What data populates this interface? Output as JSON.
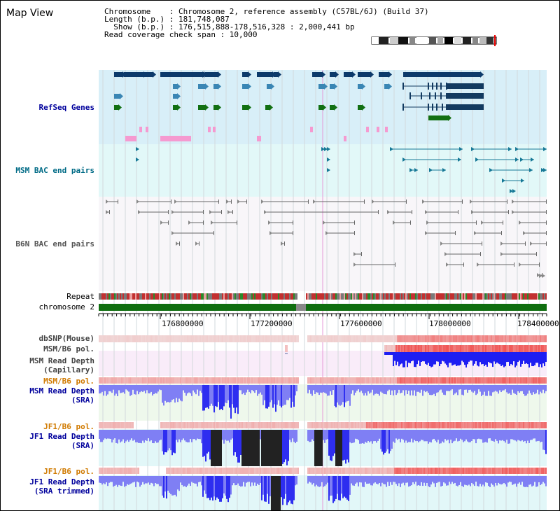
{
  "view_title": "Map View",
  "info": {
    "line1": "Chromosome    : Chromosome 2, reference assembly (C57BL/6J) (Build 37)",
    "line2": "Length (b.p.) : 181,748,087",
    "line3": "  Show (b.p.) : 176,515,888-178,516,328 : 2,000,441 bp",
    "line4": "Read coverage check span : 10,000"
  },
  "tracks": {
    "refseq": "RefSeq Genes",
    "msm_bac": "MSM BAC end pairs",
    "b6n_bac": "B6N BAC end pairs",
    "repeat": "Repeat",
    "chromosome": "chromosome 2",
    "dbsnp": "dbSNP(Mouse)",
    "msm_pol1": "MSM/B6 pol.",
    "msm_depth_cap": "MSM Read Depth",
    "msm_depth_cap_sub": "(Capillary)",
    "msm_pol2": "MSM/B6 pol.",
    "msm_depth_sra": "MSM Read Depth",
    "msm_depth_sra_sub": "(SRA)",
    "jf1_pol1": "JF1/B6 pol.",
    "jf1_depth": "JF1 Read Depth",
    "jf1_depth_sub": "(SRA)",
    "jf1_pol2": "JF1/B6 pol.",
    "jf1_depth_trim": "JF1 Read Depth",
    "jf1_depth_trim_sub": "(SRA trimmed)"
  },
  "ruler": {
    "ticks": [
      "176800000",
      "177200000",
      "177600000",
      "178000000",
      "178400000"
    ]
  },
  "colors": {
    "refseq_bg": "#d8eff8",
    "msm_bac_bg": "#e2f8f8",
    "b6n_bg": "#f8f6f9",
    "chromosome": "#0f6e0f",
    "depth_blue": "#2e2ef0",
    "depth_light": "#7f7ff4",
    "polymorphism_red": "#e83838",
    "track_label_blue": "#00009c",
    "track_label_orange": "#d07a00",
    "track_label_teal": "#006b86"
  }
}
